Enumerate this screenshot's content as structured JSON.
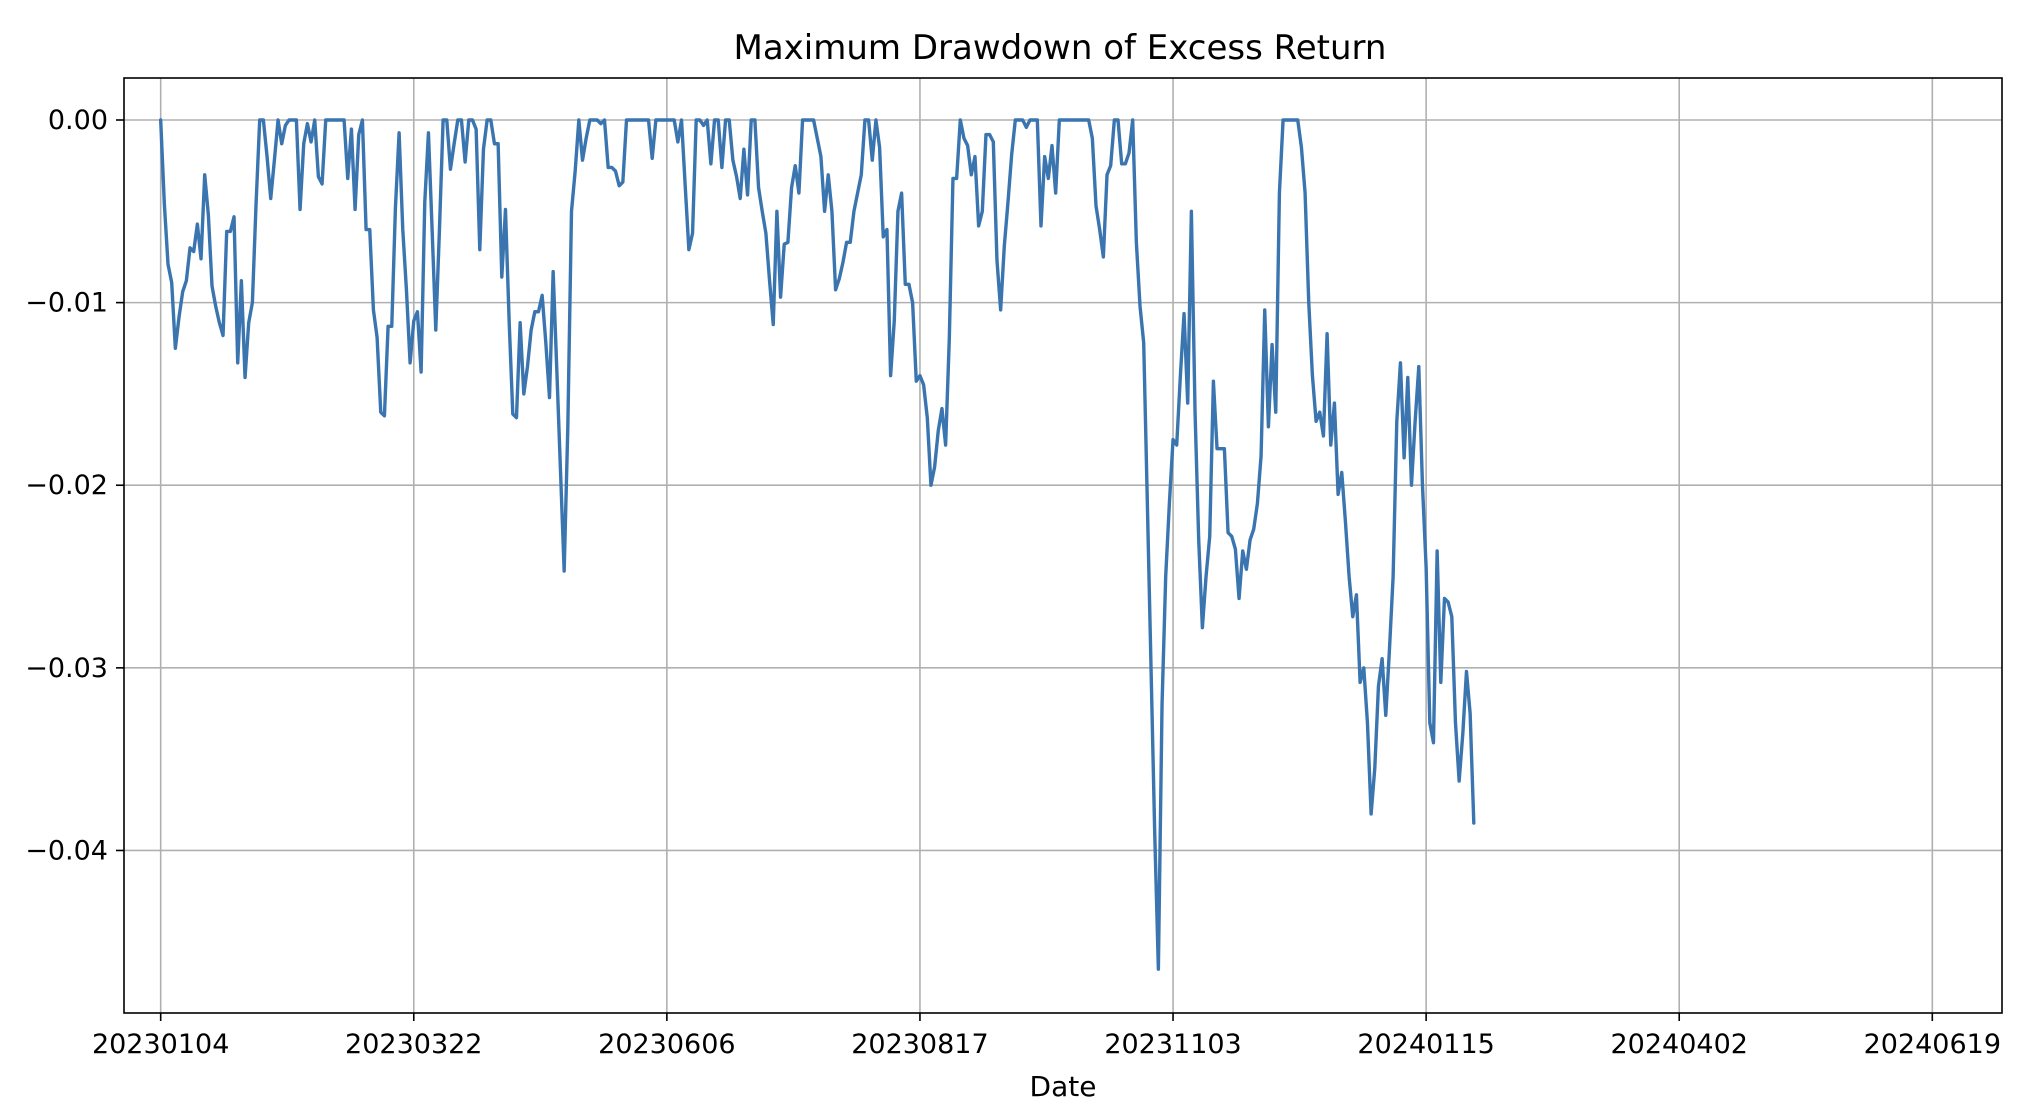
{
  "chart_data": {
    "type": "line",
    "title": "Maximum Drawdown of Excess Return",
    "xlabel": "Date",
    "ylabel": "",
    "grid": true,
    "legend": "none",
    "ylim": [
      -0.0489,
      0.0023
    ],
    "xlim": [
      -10,
      502
    ],
    "x_ticks": [
      {
        "index": 0,
        "label": "20230104"
      },
      {
        "index": 69,
        "label": "20230322"
      },
      {
        "index": 138,
        "label": "20230606"
      },
      {
        "index": 207,
        "label": "20230817"
      },
      {
        "index": 276,
        "label": "20231103"
      },
      {
        "index": 345,
        "label": "20240115"
      },
      {
        "index": 414,
        "label": "20240402"
      },
      {
        "index": 483,
        "label": "20240619"
      }
    ],
    "y_ticks": [
      {
        "value": 0.0,
        "label": "0.00"
      },
      {
        "value": -0.01,
        "label": "−0.01"
      },
      {
        "value": -0.02,
        "label": "−0.02"
      },
      {
        "value": -0.03,
        "label": "−0.03"
      },
      {
        "value": -0.04,
        "label": "−0.04"
      }
    ],
    "series": [
      {
        "name": "",
        "color": "#3a75b0",
        "values": [
          0,
          -0.0046,
          -0.0079,
          -0.0089,
          -0.0125,
          -0.0108,
          -0.0094,
          -0.0088,
          -0.007,
          -0.0072,
          -0.0057,
          -0.0076,
          -0.003,
          -0.0052,
          -0.0091,
          -0.0102,
          -0.0111,
          -0.0118,
          -0.0061,
          -0.0061,
          -0.0053,
          -0.0133,
          -0.0088,
          -0.0141,
          -0.0111,
          -0.01,
          -0.0046,
          0,
          0,
          -0.002,
          -0.0043,
          -0.0022,
          0,
          -0.0013,
          -0.0003,
          0,
          0,
          0,
          -0.0049,
          -0.0013,
          -0.0002,
          -0.0012,
          0,
          -0.0031,
          -0.0035,
          0,
          0,
          0,
          0,
          0,
          0,
          -0.0032,
          -0.0005,
          -0.0049,
          -0.0008,
          0,
          -0.006,
          -0.006,
          -0.0104,
          -0.0119,
          -0.016,
          -0.0162,
          -0.0113,
          -0.0113,
          -0.0048,
          -0.0007,
          -0.006,
          -0.0093,
          -0.0133,
          -0.011,
          -0.0105,
          -0.0138,
          -0.0045,
          -0.0007,
          -0.006,
          -0.0115,
          -0.006,
          0,
          0,
          -0.0027,
          -0.0013,
          0,
          0,
          -0.0023,
          0,
          0,
          -0.0005,
          -0.0071,
          -0.0016,
          0,
          0,
          -0.0013,
          -0.0013,
          -0.0086,
          -0.0049,
          -0.011,
          -0.0161,
          -0.0163,
          -0.0111,
          -0.015,
          -0.0135,
          -0.0115,
          -0.0105,
          -0.0105,
          -0.0096,
          -0.0122,
          -0.0152,
          -0.0083,
          -0.0137,
          -0.0192,
          -0.0247,
          -0.0168,
          -0.005,
          -0.0028,
          0,
          -0.0022,
          -0.001,
          0,
          0,
          0,
          -0.0002,
          0,
          -0.0026,
          -0.0026,
          -0.0028,
          -0.0036,
          -0.0034,
          0,
          0,
          0,
          0,
          0,
          0,
          0,
          -0.0021,
          0,
          0,
          0,
          0,
          0,
          0,
          -0.0012,
          0,
          -0.0036,
          -0.0071,
          -0.0062,
          0,
          0,
          -0.0003,
          0,
          -0.0024,
          0,
          0,
          -0.0026,
          0,
          0,
          -0.0022,
          -0.0031,
          -0.0043,
          -0.0016,
          -0.0041,
          0,
          0,
          -0.0037,
          -0.005,
          -0.0062,
          -0.0088,
          -0.0112,
          -0.005,
          -0.0097,
          -0.0068,
          -0.0067,
          -0.0037,
          -0.0025,
          -0.004,
          0,
          0,
          0,
          0,
          -0.001,
          -0.002,
          -0.005,
          -0.003,
          -0.005,
          -0.0093,
          -0.0087,
          -0.0078,
          -0.0067,
          -0.0067,
          -0.005,
          -0.004,
          -0.003,
          0,
          0,
          -0.0022,
          0,
          -0.0015,
          -0.0064,
          -0.006,
          -0.014,
          -0.011,
          -0.005,
          -0.004,
          -0.009,
          -0.009,
          -0.01,
          -0.0143,
          -0.014,
          -0.0145,
          -0.0163,
          -0.02,
          -0.019,
          -0.017,
          -0.0158,
          -0.0178,
          -0.012,
          -0.0032,
          -0.0032,
          0,
          -0.001,
          -0.0014,
          -0.003,
          -0.002,
          -0.0058,
          -0.005,
          -0.0008,
          -0.0008,
          -0.0012,
          -0.0077,
          -0.0104,
          -0.0069,
          -0.0045,
          -0.0019,
          0,
          0,
          0,
          -0.0004,
          0,
          0,
          0,
          -0.0058,
          -0.002,
          -0.0032,
          -0.0014,
          -0.004,
          0,
          0,
          0,
          0,
          0,
          0,
          0,
          0,
          0,
          -0.001,
          -0.0047,
          -0.006,
          -0.0075,
          -0.003,
          -0.0025,
          0,
          0,
          -0.0024,
          -0.0024,
          -0.0018,
          0,
          -0.0067,
          -0.0102,
          -0.0122,
          -0.021,
          -0.03,
          -0.039,
          -0.0465,
          -0.032,
          -0.025,
          -0.021,
          -0.0175,
          -0.0178,
          -0.014,
          -0.0106,
          -0.0155,
          -0.005,
          -0.016,
          -0.023,
          -0.0278,
          -0.025,
          -0.0228,
          -0.0143,
          -0.018,
          -0.018,
          -0.018,
          -0.0226,
          -0.0228,
          -0.0235,
          -0.0262,
          -0.0236,
          -0.0246,
          -0.023,
          -0.0224,
          -0.021,
          -0.0184,
          -0.0104,
          -0.0168,
          -0.0123,
          -0.016,
          -0.004,
          0,
          0,
          0,
          0,
          0,
          -0.0015,
          -0.004,
          -0.01,
          -0.014,
          -0.0165,
          -0.016,
          -0.0173,
          -0.0117,
          -0.0178,
          -0.0155,
          -0.0205,
          -0.0193,
          -0.022,
          -0.025,
          -0.0272,
          -0.026,
          -0.0308,
          -0.03,
          -0.033,
          -0.038,
          -0.0355,
          -0.031,
          -0.0295,
          -0.0326,
          -0.029,
          -0.025,
          -0.0165,
          -0.0133,
          -0.0185,
          -0.0141,
          -0.02,
          -0.0165,
          -0.0135,
          -0.02,
          -0.0245,
          -0.033,
          -0.0341,
          -0.0236,
          -0.0308,
          -0.0262,
          -0.0264,
          -0.0272,
          -0.033,
          -0.0362,
          -0.0336,
          -0.0302,
          -0.0325,
          -0.0385
        ]
      }
    ]
  }
}
